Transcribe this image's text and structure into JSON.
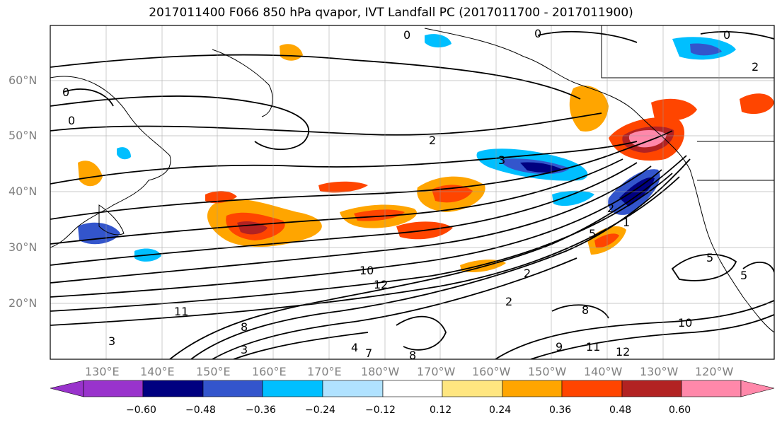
{
  "title": "2017011400 F066 850 hPa qvapor, IVT Landfall PC (2017011700 - 2017011900)",
  "lat_labels": [
    "60°N",
    "50°N",
    "40°N",
    "30°N",
    "20°N"
  ],
  "lon_labels": [
    "130°E",
    "140°E",
    "150°E",
    "160°E",
    "170°E",
    "180°W",
    "170°W",
    "160°W",
    "150°W",
    "140°W",
    "130°W",
    "120°W"
  ],
  "contour_labels": [
    "0",
    "0",
    "0",
    "2",
    "0",
    "0",
    "2",
    "2",
    "3",
    "5",
    "10",
    "12",
    "11",
    "8",
    "3",
    "3",
    "4",
    "7",
    "8",
    "2",
    "8",
    "9",
    "11",
    "12",
    "10",
    "5",
    "5",
    "2",
    "1"
  ],
  "colorbar": {
    "ticks": [
      "−0.60",
      "−0.48",
      "−0.36",
      "−0.24",
      "−0.12",
      "0.12",
      "0.24",
      "0.36",
      "0.48",
      "0.60"
    ],
    "colors": [
      "#9933cc",
      "#000080",
      "#3355cc",
      "#00bfff",
      "#b0e2ff",
      "#ffffff",
      "#ffe680",
      "#ffa500",
      "#ff4500",
      "#b22222",
      "#ff88aa"
    ]
  }
}
